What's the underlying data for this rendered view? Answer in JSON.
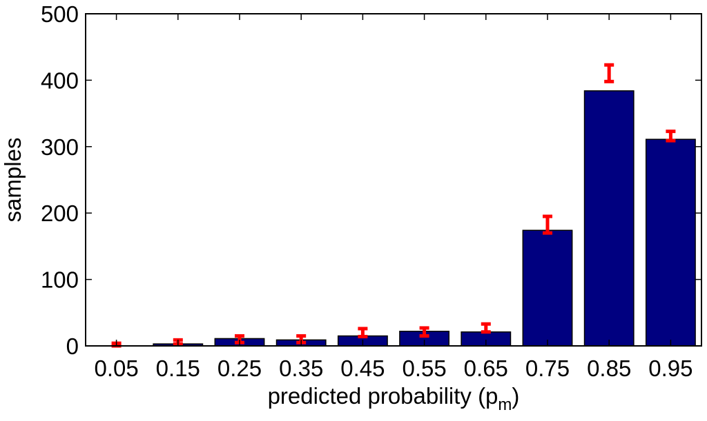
{
  "chart_data": {
    "type": "bar",
    "categories": [
      "0.05",
      "0.15",
      "0.25",
      "0.35",
      "0.45",
      "0.55",
      "0.65",
      "0.75",
      "0.85",
      "0.95"
    ],
    "values": [
      0,
      3,
      11,
      9,
      15,
      22,
      21,
      174,
      384,
      311
    ],
    "error_bars": {
      "center": [
        2,
        6,
        10,
        10,
        20,
        21,
        27,
        182,
        410,
        316
      ],
      "low": [
        0,
        3,
        5,
        5,
        14,
        15,
        21,
        170,
        398,
        309
      ],
      "high": [
        4,
        9,
        15,
        15,
        26,
        27,
        33,
        195,
        423,
        323
      ],
      "color": "#ff0000"
    },
    "bar_color": "#000080",
    "xlabel": "predicted probability (p",
    "xlabel_subscript": "m",
    "xlabel_close": ")",
    "ylabel": "samples",
    "ylim": [
      0,
      500
    ],
    "yticks": [
      "0",
      "100",
      "200",
      "300",
      "400",
      "500"
    ],
    "grid": false,
    "legend": "none"
  }
}
